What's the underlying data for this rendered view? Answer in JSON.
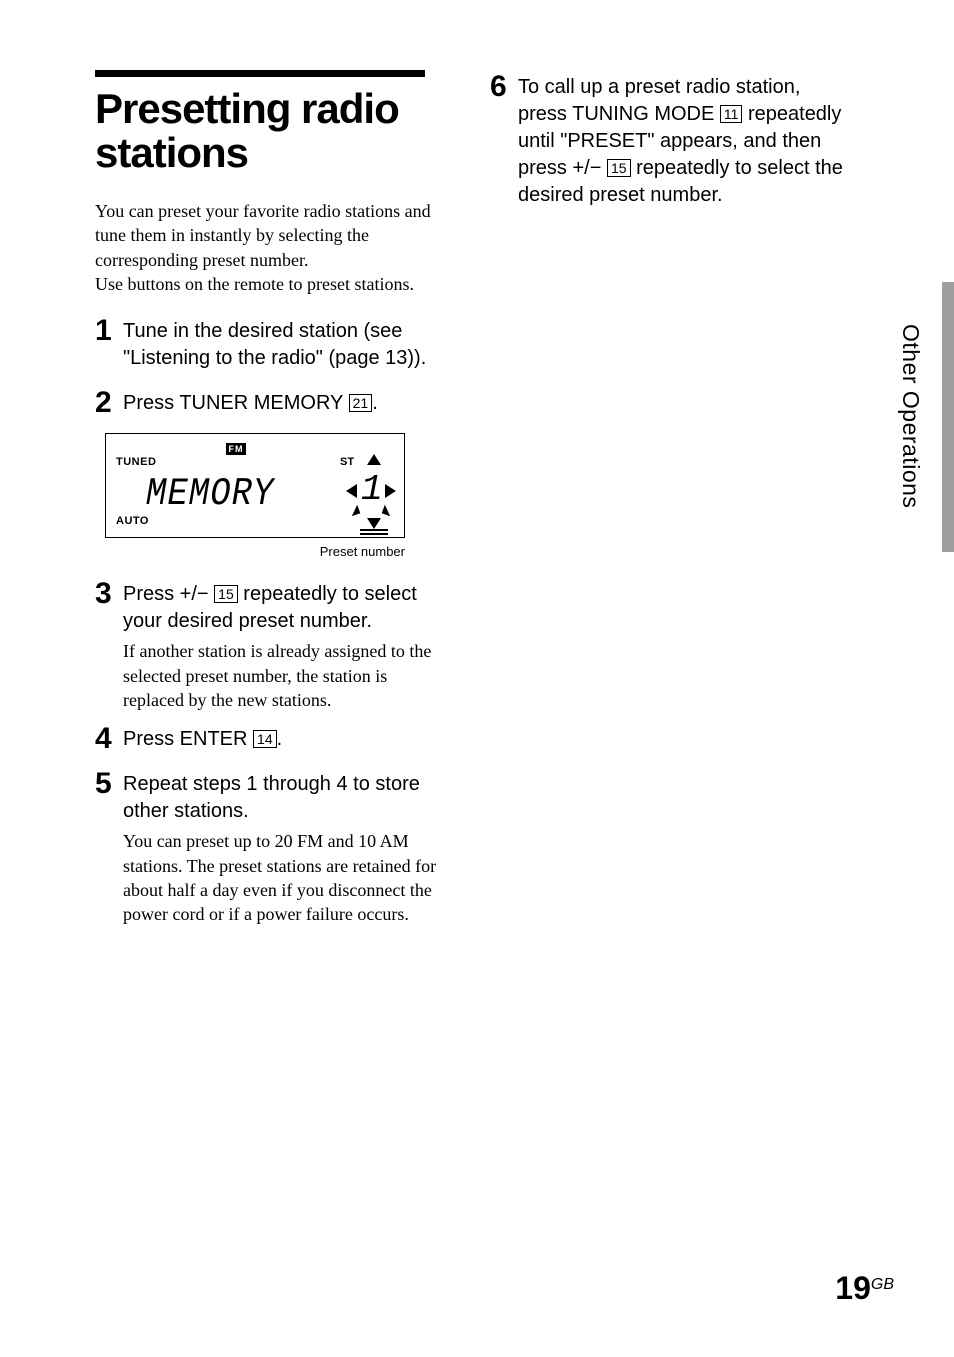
{
  "title": "Presetting radio stations",
  "intro_p1": "You can preset your favorite radio stations and tune them in instantly by selecting the corresponding preset number.",
  "intro_p2": "Use buttons on the remote to preset stations.",
  "steps": {
    "s1": {
      "num": "1",
      "head_a": "Tune in the desired station (see \"Listening to the radio\" (page 13))."
    },
    "s2": {
      "num": "2",
      "head_a": "Press TUNER MEMORY ",
      "ref": "21",
      "head_b": "."
    },
    "s3": {
      "num": "3",
      "head_a": "Press +/",
      "minus": "−",
      "ref": "15",
      "head_b": " repeatedly to select your desired preset number.",
      "sub": "If another station is already assigned to the selected preset number, the station is replaced by the new stations."
    },
    "s4": {
      "num": "4",
      "head_a": "Press ENTER ",
      "ref": "14",
      "head_b": "."
    },
    "s5": {
      "num": "5",
      "head_a": "Repeat steps 1 through 4 to store other stations.",
      "sub": "You can preset up to 20 FM and 10 AM stations. The preset stations are retained for about half a day even if you disconnect the power cord or if a power failure occurs."
    },
    "s6": {
      "num": "6",
      "head_a": "To call up a preset radio station, press TUNING MODE ",
      "ref1": "11",
      "head_b": " repeatedly until \"PRESET\" appears, and then press +/",
      "minus": "−",
      "ref2": "15",
      "head_c": " repeatedly to select the desired preset number."
    }
  },
  "display": {
    "tuned": "TUNED",
    "auto": "AUTO",
    "fm": "FM",
    "st": "ST",
    "text": "MEMORY",
    "preset_num": "1",
    "caption": "Preset number"
  },
  "side_tab": "Other Operations",
  "page": {
    "num": "19",
    "suffix": "GB"
  },
  "colors": {
    "text": "#000000",
    "bg": "#ffffff",
    "tab_bar": "#9e9e9e"
  }
}
